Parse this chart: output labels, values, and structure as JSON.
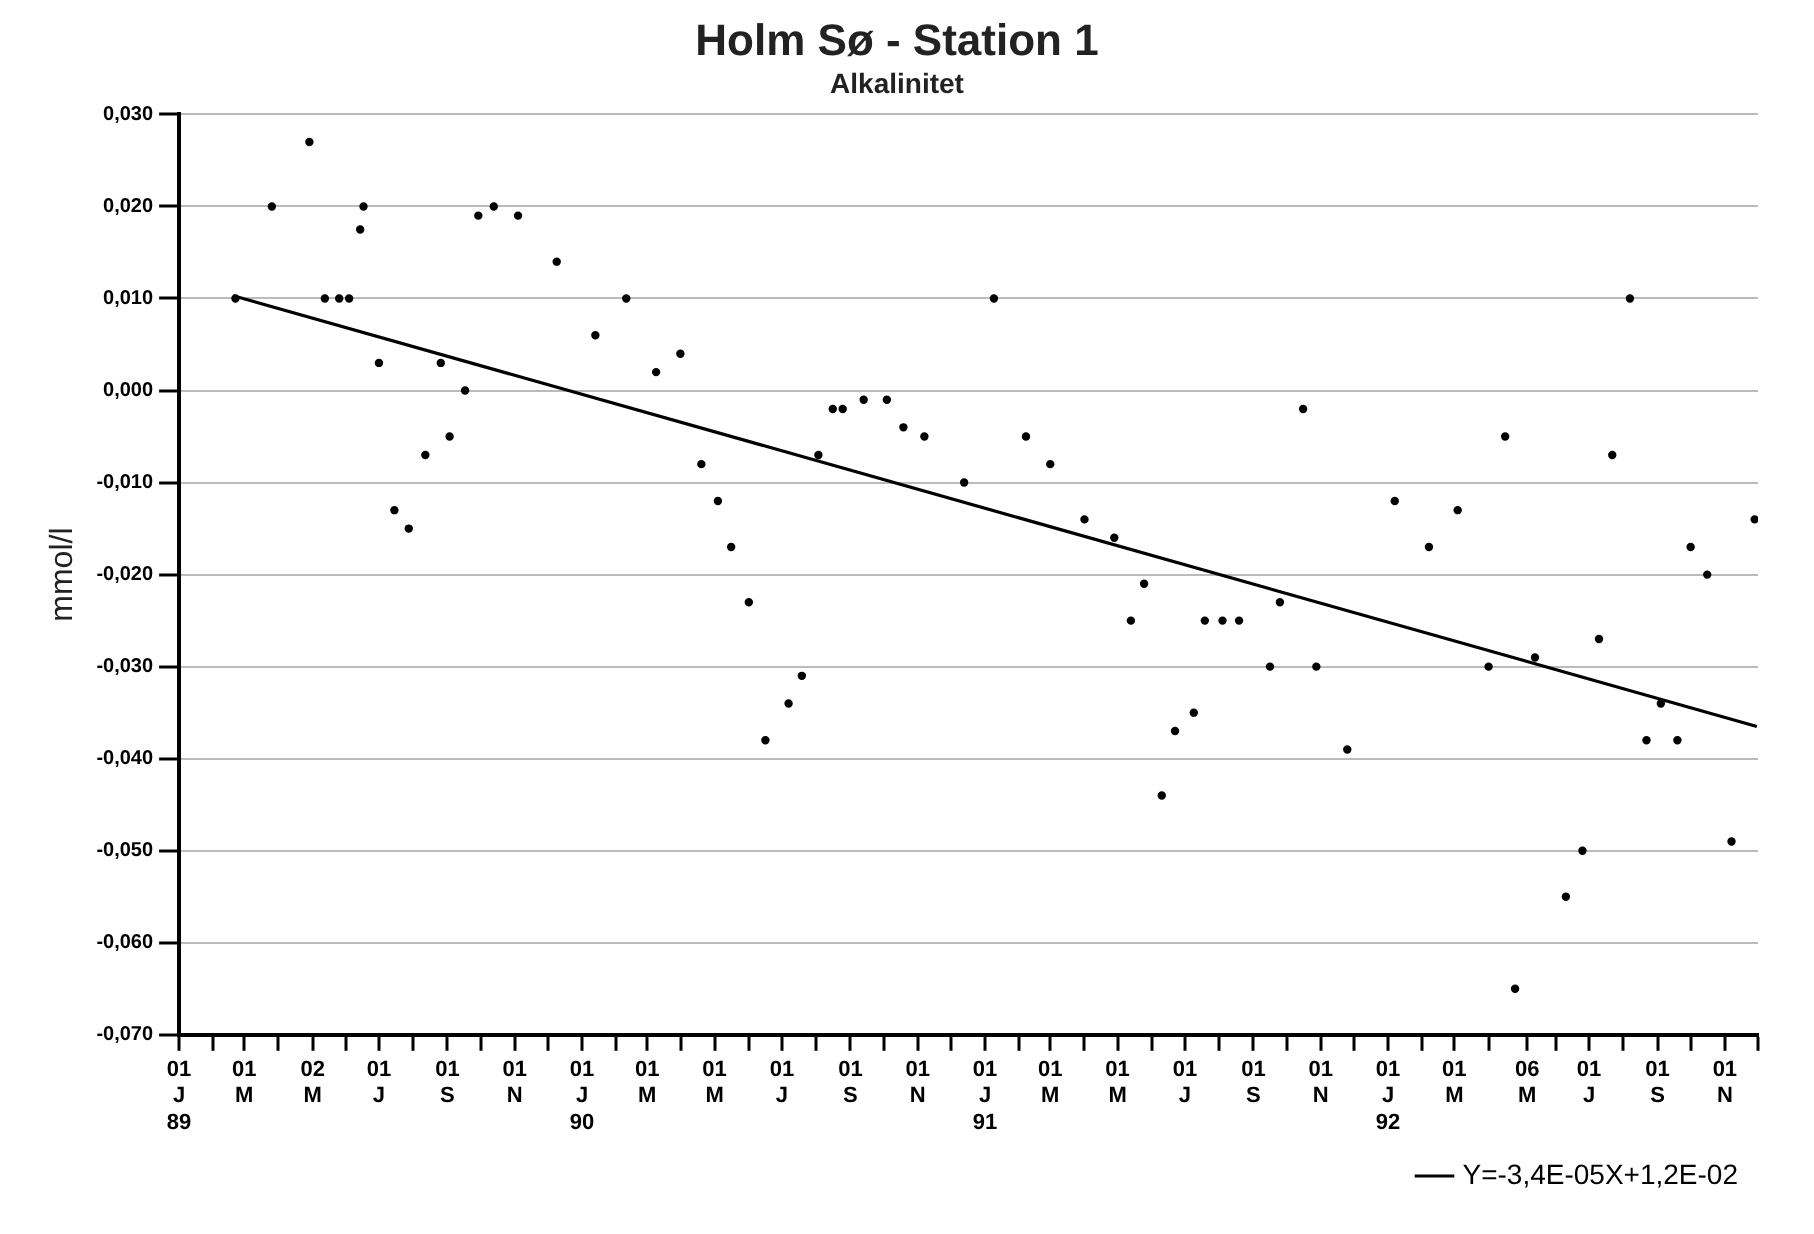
{
  "chart_data": {
    "type": "scatter",
    "title": "Holm Sø - Station 1",
    "subtitle": "Alkalinitet",
    "ylabel": "mmol/l",
    "xlim": [
      "1989-01-01",
      "1992-12-01"
    ],
    "ylim": [
      -0.07,
      0.03
    ],
    "yticks": [
      {
        "value": 0.03,
        "label": "0,030"
      },
      {
        "value": 0.02,
        "label": "0,020"
      },
      {
        "value": 0.01,
        "label": "0,010"
      },
      {
        "value": 0,
        "label": "0,000"
      },
      {
        "value": -0.01,
        "label": "-0,010"
      },
      {
        "value": -0.02,
        "label": "-0,020"
      },
      {
        "value": -0.03,
        "label": "-0,030"
      },
      {
        "value": -0.04,
        "label": "-0,040"
      },
      {
        "value": -0.05,
        "label": "-0,050"
      },
      {
        "value": -0.06,
        "label": "-0,060"
      },
      {
        "value": -0.07,
        "label": "-0,070"
      }
    ],
    "xticks": [
      {
        "value": "1989-01-01",
        "label": "01 J 89"
      },
      {
        "value": "1989-02-01",
        "label": null
      },
      {
        "value": "1989-03-01",
        "label": "01 M"
      },
      {
        "value": "1989-04-01",
        "label": null
      },
      {
        "value": "1989-05-02",
        "label": "02 M"
      },
      {
        "value": "1989-06-01",
        "label": null
      },
      {
        "value": "1989-07-01",
        "label": "01 J"
      },
      {
        "value": "1989-08-01",
        "label": null
      },
      {
        "value": "1989-09-01",
        "label": "01 S"
      },
      {
        "value": "1989-10-01",
        "label": null
      },
      {
        "value": "1989-11-01",
        "label": "01 N"
      },
      {
        "value": "1989-12-01",
        "label": null
      },
      {
        "value": "1990-01-01",
        "label": "01 J 90"
      },
      {
        "value": "1990-02-01",
        "label": null
      },
      {
        "value": "1990-03-01",
        "label": "01 M"
      },
      {
        "value": "1990-04-01",
        "label": null
      },
      {
        "value": "1990-05-01",
        "label": "01 M"
      },
      {
        "value": "1990-06-01",
        "label": null
      },
      {
        "value": "1990-07-01",
        "label": "01 J"
      },
      {
        "value": "1990-08-01",
        "label": null
      },
      {
        "value": "1990-09-01",
        "label": "01 S"
      },
      {
        "value": "1990-10-01",
        "label": null
      },
      {
        "value": "1990-11-01",
        "label": "01 N"
      },
      {
        "value": "1990-12-01",
        "label": null
      },
      {
        "value": "1991-01-01",
        "label": "01 J 91"
      },
      {
        "value": "1991-02-01",
        "label": null
      },
      {
        "value": "1991-03-01",
        "label": "01 M"
      },
      {
        "value": "1991-04-01",
        "label": null
      },
      {
        "value": "1991-05-01",
        "label": "01 M"
      },
      {
        "value": "1991-06-01",
        "label": null
      },
      {
        "value": "1991-07-01",
        "label": "01 J"
      },
      {
        "value": "1991-08-01",
        "label": null
      },
      {
        "value": "1991-09-01",
        "label": "01 S"
      },
      {
        "value": "1991-10-01",
        "label": null
      },
      {
        "value": "1991-11-01",
        "label": "01 N"
      },
      {
        "value": "1991-12-01",
        "label": null
      },
      {
        "value": "1992-01-01",
        "label": "01 J 92"
      },
      {
        "value": "1992-02-01",
        "label": null
      },
      {
        "value": "1992-03-01",
        "label": "01 M"
      },
      {
        "value": "1992-04-01",
        "label": null
      },
      {
        "value": "1992-05-06",
        "label": "06 M"
      },
      {
        "value": "1992-06-01",
        "label": null
      },
      {
        "value": "1992-07-01",
        "label": "01 J"
      },
      {
        "value": "1992-08-01",
        "label": null
      },
      {
        "value": "1992-09-01",
        "label": "01 S"
      },
      {
        "value": "1992-10-01",
        "label": null
      },
      {
        "value": "1992-11-01",
        "label": "01 N"
      },
      {
        "value": "1992-12-01",
        "label": null
      }
    ],
    "grid": "y",
    "legend": "bottom right",
    "series": [
      {
        "type": "scatter",
        "color": "#000000",
        "marker": "circle",
        "x": [
          "1989-02-21",
          "1989-03-26",
          "1989-04-29",
          "1989-05-13",
          "1989-05-26",
          "1989-06-04",
          "1989-06-14",
          "1989-06-17",
          "1989-07-01",
          "1989-07-15",
          "1989-07-28",
          "1989-08-12",
          "1989-08-26",
          "1989-09-03",
          "1989-09-17",
          "1989-09-29",
          "1989-10-13",
          "1989-11-04",
          "1989-12-09",
          "1990-01-13",
          "1990-02-10",
          "1990-03-09",
          "1990-03-31",
          "1990-04-19",
          "1990-05-04",
          "1990-05-16",
          "1990-06-01",
          "1990-06-16",
          "1990-07-07",
          "1990-07-19",
          "1990-08-03",
          "1990-08-16",
          "1990-08-25",
          "1990-09-13",
          "1990-10-04",
          "1990-10-19",
          "1990-11-07",
          "1990-12-13",
          "1991-01-09",
          "1991-02-07",
          "1991-03-01",
          "1991-04-01",
          "1991-04-28",
          "1991-05-13",
          "1991-05-25",
          "1991-06-10",
          "1991-06-22",
          "1991-07-09",
          "1991-07-19",
          "1991-08-04",
          "1991-08-19",
          "1991-09-16",
          "1991-09-25",
          "1991-10-16",
          "1991-10-28",
          "1991-11-25",
          "1992-01-07",
          "1992-02-07",
          "1992-03-04",
          "1992-04-01",
          "1992-04-16",
          "1992-04-25",
          "1992-05-13",
          "1992-06-10",
          "1992-06-25",
          "1992-07-10",
          "1992-07-22",
          "1992-08-07",
          "1992-08-22",
          "1992-09-04",
          "1992-09-19",
          "1992-10-01",
          "1992-10-16",
          "1992-11-07",
          "1992-11-28"
        ],
        "values": [
          0.01,
          0.02,
          0.027,
          0.01,
          0.01,
          0.01,
          0.0175,
          0.02,
          0.003,
          -0.013,
          -0.015,
          -0.007,
          0.003,
          -0.005,
          0,
          0.019,
          0.02,
          0.019,
          0.014,
          0.006,
          0.01,
          0.002,
          0.004,
          -0.008,
          -0.012,
          -0.017,
          -0.023,
          -0.038,
          -0.034,
          -0.031,
          -0.007,
          -0.002,
          -0.002,
          -0.001,
          -0.001,
          -0.004,
          -0.005,
          -0.01,
          0.01,
          -0.005,
          -0.008,
          -0.014,
          -0.016,
          -0.025,
          -0.021,
          -0.044,
          -0.037,
          -0.035,
          -0.025,
          -0.025,
          -0.025,
          -0.03,
          -0.023,
          -0.002,
          -0.03,
          -0.039,
          -0.012,
          -0.017,
          -0.013,
          -0.03,
          -0.005,
          -0.065,
          -0.029,
          -0.055,
          -0.05,
          -0.027,
          -0.007,
          0.01,
          -0.038,
          -0.034,
          -0.038,
          -0.017,
          -0.02,
          -0.049,
          -0.014
        ]
      },
      {
        "type": "line",
        "name": "Y=-3,4E-05X+1,2E-02",
        "color": "#000000",
        "marker": "none",
        "line_style": "solid",
        "x": [
          "1989-02-19",
          "1992-11-30"
        ],
        "values": [
          0.0103,
          -0.0365
        ]
      }
    ]
  }
}
